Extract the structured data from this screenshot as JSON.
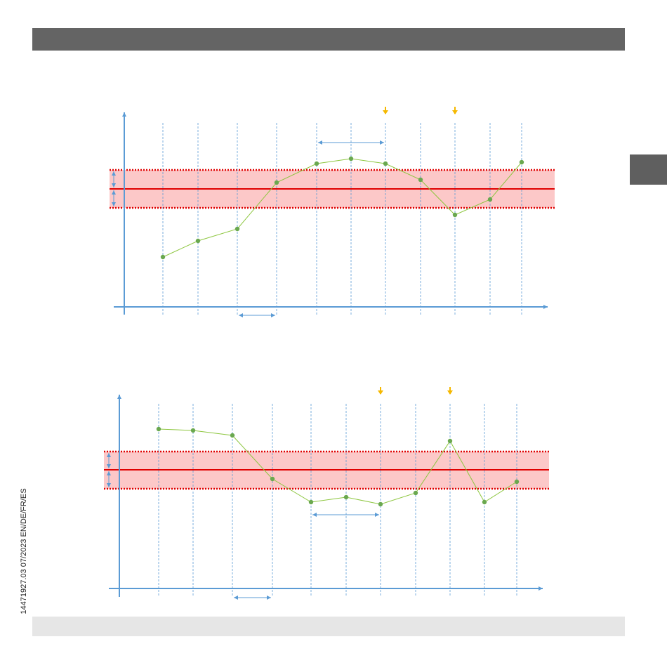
{
  "footer": {
    "document_code": "14471927.03 07/2023 EN/DE/FR/ES"
  }
}
